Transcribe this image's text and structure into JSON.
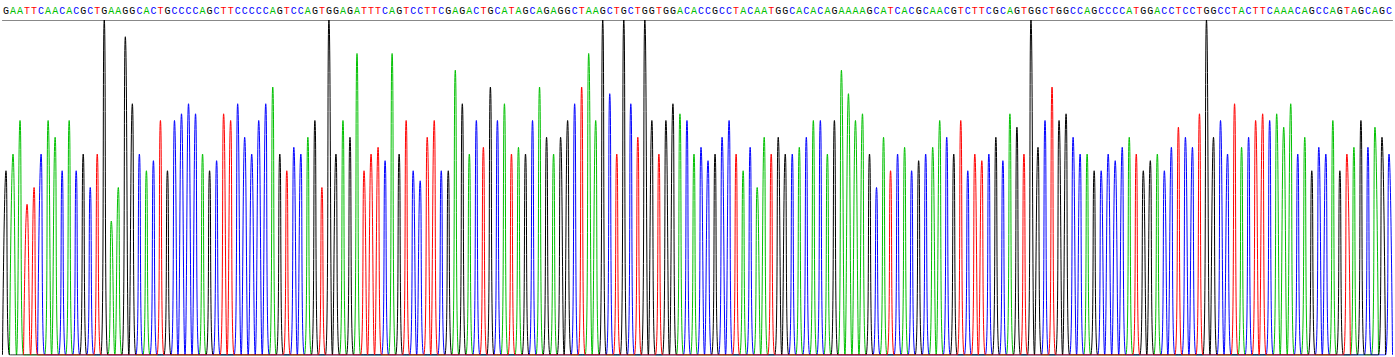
{
  "chart_data": {
    "type": "chromatogram",
    "sequence": "GAATTCAACACGCTGAAGGCACTGCCCCAGCTTCCCCCAGTCCAGTGGAGATTTCAGTCCTTCGAGACTGCATAGCAGAGGCTAAGCTGCTGGTGGACACCGCCTACAATGGCACACAGAAAAGCATCACGCAACGTCTTCGCAGTGGCTGGCCAGCCCCATGGACCTCCTGGCCTACTTCAAACAGCCAGTAGCAGC",
    "values": [
      55,
      60,
      70,
      45,
      50,
      60,
      70,
      65,
      55,
      70,
      55,
      60,
      50,
      60,
      100,
      40,
      50,
      95,
      75,
      60,
      55,
      58,
      70,
      55,
      70,
      72,
      75,
      72,
      60,
      55,
      58,
      72,
      70,
      75,
      65,
      60,
      70,
      75,
      80,
      60,
      55,
      62,
      60,
      65,
      70,
      50,
      100,
      60,
      70,
      65,
      90,
      55,
      60,
      62,
      58,
      90,
      60,
      70,
      55,
      52,
      65,
      70,
      55,
      55,
      85,
      75,
      60,
      70,
      62,
      80,
      70,
      75,
      60,
      62,
      60,
      70,
      80,
      65,
      60,
      65,
      70,
      75,
      80,
      90,
      70,
      100,
      78,
      60,
      100,
      75,
      65,
      100,
      70,
      60,
      70,
      75,
      72,
      70,
      60,
      62,
      58,
      60,
      65,
      70,
      60,
      55,
      62,
      50,
      65,
      60,
      65,
      60,
      60,
      62,
      65,
      70,
      70,
      60,
      70,
      85,
      78,
      70,
      72,
      60,
      50,
      65,
      55,
      60,
      62,
      55,
      58,
      60,
      62,
      70,
      65,
      60,
      70,
      55,
      60,
      58,
      60,
      65,
      58,
      72,
      68,
      60,
      100,
      62,
      70,
      80,
      70,
      72,
      65,
      60,
      60,
      55,
      55,
      60,
      58,
      62,
      65,
      60,
      55,
      58,
      60,
      55,
      62,
      68,
      65,
      62,
      72,
      100,
      65,
      70,
      60,
      75,
      62,
      65,
      70,
      72,
      70,
      72,
      68,
      75,
      60,
      65,
      55,
      62,
      60,
      70,
      55,
      60,
      62,
      70,
      62,
      68,
      65,
      60
    ],
    "color": {
      "A": "#00c000",
      "C": "#0000ff",
      "G": "#000000",
      "T": "#ff0000"
    },
    "ylim": [
      0,
      100
    ],
    "tick_labels": false,
    "grid": false
  }
}
